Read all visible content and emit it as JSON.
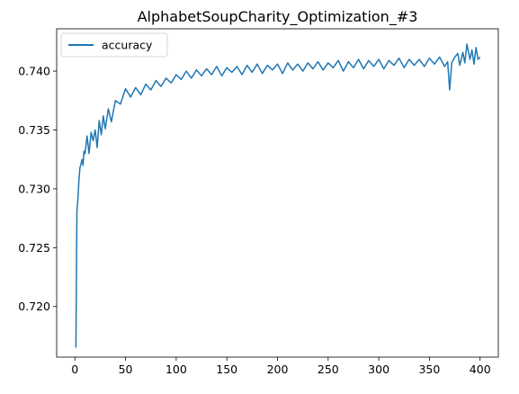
{
  "chart_data": {
    "type": "line",
    "title": "AlphabetSoupCharity_Optimization_#3",
    "xlabel": "",
    "ylabel": "",
    "xlim": [
      -18,
      418
    ],
    "ylim": [
      0.7157,
      0.7436
    ],
    "x_ticks": [
      0,
      50,
      100,
      150,
      200,
      250,
      300,
      350,
      400
    ],
    "y_ticks": [
      0.72,
      0.725,
      0.73,
      0.735,
      0.74
    ],
    "y_tick_labels": [
      "0.720",
      "0.725",
      "0.730",
      "0.735",
      "0.740"
    ],
    "grid": false,
    "legend_position": "top-left",
    "series": [
      {
        "name": "accuracy",
        "color": "#1f77b4",
        "x": [
          1,
          2,
          3,
          4,
          5,
          6,
          7,
          8,
          9,
          10,
          12,
          14,
          16,
          18,
          20,
          22,
          24,
          26,
          28,
          30,
          33,
          36,
          40,
          45,
          50,
          55,
          60,
          65,
          70,
          75,
          80,
          85,
          90,
          95,
          100,
          105,
          110,
          115,
          120,
          125,
          130,
          135,
          140,
          145,
          150,
          155,
          160,
          165,
          170,
          175,
          180,
          185,
          190,
          195,
          200,
          205,
          210,
          215,
          220,
          225,
          230,
          235,
          240,
          245,
          250,
          255,
          260,
          265,
          270,
          275,
          280,
          285,
          290,
          295,
          300,
          305,
          310,
          315,
          320,
          325,
          330,
          335,
          340,
          345,
          350,
          355,
          360,
          365,
          368,
          370,
          372,
          375,
          378,
          380,
          383,
          385,
          387,
          390,
          392,
          394,
          396,
          398,
          400
        ],
        "values": [
          0.7165,
          0.7281,
          0.7291,
          0.7308,
          0.7318,
          0.7321,
          0.7325,
          0.732,
          0.7332,
          0.733,
          0.7345,
          0.733,
          0.7348,
          0.7341,
          0.735,
          0.7335,
          0.7358,
          0.7346,
          0.7362,
          0.7351,
          0.7368,
          0.7357,
          0.7375,
          0.7372,
          0.7385,
          0.7378,
          0.7386,
          0.738,
          0.7389,
          0.7384,
          0.7392,
          0.7387,
          0.7394,
          0.739,
          0.7397,
          0.7393,
          0.74,
          0.7394,
          0.7401,
          0.7396,
          0.7402,
          0.7397,
          0.7404,
          0.7396,
          0.7403,
          0.7399,
          0.7404,
          0.7397,
          0.7405,
          0.7399,
          0.7406,
          0.7398,
          0.7405,
          0.7401,
          0.7406,
          0.7398,
          0.7407,
          0.7401,
          0.7406,
          0.74,
          0.7407,
          0.7402,
          0.7408,
          0.7401,
          0.7407,
          0.7403,
          0.7409,
          0.74,
          0.7408,
          0.7403,
          0.741,
          0.7402,
          0.7409,
          0.7404,
          0.741,
          0.7402,
          0.7409,
          0.7405,
          0.7411,
          0.7403,
          0.741,
          0.7405,
          0.741,
          0.7404,
          0.7411,
          0.7406,
          0.7412,
          0.7404,
          0.7408,
          0.7384,
          0.7407,
          0.7412,
          0.7415,
          0.7405,
          0.7416,
          0.7407,
          0.7423,
          0.741,
          0.7418,
          0.7406,
          0.742,
          0.741,
          0.7412
        ]
      }
    ]
  }
}
